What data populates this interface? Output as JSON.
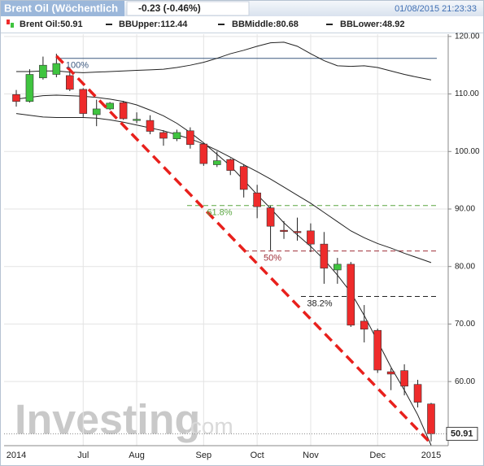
{
  "chart_data": {
    "type": "candlestick",
    "title": "Brent Oil (Wöchentlich",
    "change": "-0.23 (-0.46%)",
    "datetime": "01/08/2015 21:23:33",
    "legend": [
      "Brent Oil:50.91",
      "BBUpper:112.44",
      "BBMiddle:80.68",
      "BBLower:48.92"
    ],
    "watermark": [
      "Investing",
      ".com"
    ],
    "categories": [
      "2014",
      null,
      null,
      null,
      null,
      "Jul",
      null,
      null,
      null,
      "Aug",
      null,
      null,
      null,
      null,
      "Sep",
      null,
      null,
      null,
      "Oct",
      null,
      null,
      null,
      "Nov",
      null,
      null,
      null,
      null,
      "Dec",
      null,
      null,
      null,
      "2015"
    ],
    "open": [
      109.9,
      108.7,
      112.8,
      113.4,
      113.2,
      110.8,
      106.4,
      107.4,
      108.5,
      105.4,
      105.4,
      103.3,
      102.2,
      103.6,
      101.3,
      97.7,
      98.6,
      97.4,
      92.8,
      90.2,
      86.3,
      86.1,
      86.2,
      83.9,
      79.4,
      80.4,
      70.5,
      68.9,
      61.7,
      61.9,
      59.5,
      56.1
    ],
    "high": [
      110.7,
      114.3,
      116.5,
      117.0,
      114.5,
      111.0,
      109.0,
      108.6,
      108.8,
      106.8,
      106.3,
      103.7,
      103.8,
      104.2,
      101.5,
      100.0,
      98.8,
      97.8,
      94.2,
      90.6,
      87.9,
      88.5,
      87.5,
      86.0,
      81.5,
      80.8,
      73.3,
      69.2,
      62.3,
      63.0,
      60.3,
      56.3
    ],
    "low": [
      107.8,
      108.5,
      112.5,
      112.9,
      110.5,
      106.0,
      104.4,
      107.2,
      105.5,
      104.9,
      103.0,
      101.0,
      101.8,
      100.5,
      97.5,
      97.3,
      95.9,
      92.0,
      88.4,
      82.8,
      84.8,
      84.5,
      82.5,
      77.0,
      77.0,
      69.5,
      66.8,
      61.5,
      58.5,
      57.6,
      55.5,
      49.6
    ],
    "close": [
      108.7,
      113.4,
      115.0,
      115.3,
      110.8,
      106.6,
      107.4,
      108.4,
      105.7,
      105.6,
      103.5,
      102.3,
      103.3,
      101.2,
      97.9,
      98.4,
      96.7,
      93.4,
      90.4,
      87.0,
      86.1,
      86.0,
      83.9,
      79.7,
      80.4,
      69.8,
      69.1,
      62.0,
      61.3,
      59.2,
      56.4,
      50.91
    ],
    "up_color": "#3fc43f",
    "down_color": "#ee2b2b",
    "overlays": [
      {
        "color": "#222222",
        "values": [
          113.9,
          113.9,
          114.0,
          114.0,
          113.8,
          113.7,
          113.8,
          113.9,
          114.0,
          114.1,
          114.2,
          114.3,
          114.6,
          115.0,
          115.5,
          116.2,
          117.0,
          117.6,
          118.3,
          118.9,
          119.0,
          118.3,
          117.0,
          115.8,
          114.9,
          114.8,
          114.9,
          114.6,
          114.0,
          113.4,
          112.9,
          112.44
        ]
      },
      {
        "color": "#222222",
        "values": [
          106.6,
          106.3,
          106.0,
          105.9,
          105.9,
          105.9,
          105.8,
          105.5,
          105.1,
          104.6,
          104.1,
          103.6,
          102.9,
          102.2,
          101.3,
          100.2,
          99.0,
          97.7,
          96.5,
          95.2,
          93.8,
          92.4,
          91.0,
          89.4,
          87.8,
          86.2,
          85.0,
          84.0,
          83.2,
          82.3,
          81.5,
          80.68
        ]
      },
      {
        "color": "#222222",
        "values": [
          109.1,
          109.4,
          109.7,
          109.8,
          109.7,
          109.6,
          109.4,
          109.1,
          108.7,
          108.1,
          107.2,
          106.2,
          104.9,
          103.3,
          101.5,
          99.5,
          97.5,
          95.0,
          92.5,
          90.1,
          87.6,
          85.5,
          83.5,
          81.2,
          78.5,
          75.5,
          71.5,
          67.0,
          62.5,
          58.5,
          54.2,
          48.92
        ]
      }
    ],
    "levels": [
      {
        "label": "100%",
        "value": 116.2,
        "color": "#3d5a80",
        "dashed": false
      },
      {
        "label": "61.8%",
        "value": 90.6,
        "color": "#5aa640",
        "dashed": true
      },
      {
        "label": "50%",
        "value": 82.7,
        "color": "#a0303a",
        "dashed": true
      },
      {
        "label": "38.2%",
        "value": 74.8,
        "color": "#222222",
        "dashed": true
      }
    ],
    "trendline": {
      "color": "#e8201c",
      "x": [
        3,
        31
      ],
      "y": [
        116.6,
        49.2
      ]
    },
    "ylim": [
      48.85,
      120.4
    ],
    "yticks": [
      {
        "value": 60,
        "label": "60.00"
      },
      {
        "value": 70,
        "label": "70.00"
      },
      {
        "value": 80,
        "label": "80.00"
      },
      {
        "value": 90,
        "label": "90.00"
      },
      {
        "value": 100,
        "label": "100.00"
      },
      {
        "value": 110,
        "label": "110.00"
      },
      {
        "value": 120,
        "label": "120.00"
      }
    ],
    "grid": true
  }
}
